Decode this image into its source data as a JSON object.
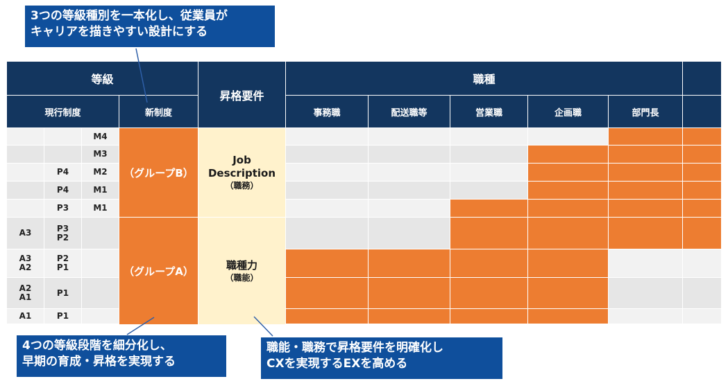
{
  "callouts": {
    "top": [
      "3つの等級種別を一本化し、従業員が",
      "キャリアを描きやすい設計にする"
    ],
    "bottom_left": [
      "4つの等級段階を細分化し、",
      "早期の育成・昇格を実現する"
    ],
    "bottom_right": [
      "職能・職務で昇格要件を明確化し",
      "CXを実現するEXを高める"
    ]
  },
  "header": {
    "grade": "等級",
    "current": "現行制度",
    "new": "新制度",
    "requirements": "昇格要件",
    "job_types": "職種",
    "jobs": [
      "事務職",
      "配送職等",
      "営業職",
      "企画職",
      "部門長"
    ]
  },
  "rows": [
    {
      "a": [],
      "p": [],
      "m": [
        "M4"
      ]
    },
    {
      "a": [],
      "p": [],
      "m": [
        "M3"
      ]
    },
    {
      "a": [],
      "p": [
        "P4"
      ],
      "m": [
        "M2"
      ]
    },
    {
      "a": [],
      "p": [
        "P4"
      ],
      "m": [
        "M1"
      ]
    },
    {
      "a": [],
      "p": [
        "P3"
      ],
      "m": [
        "M1"
      ]
    },
    {
      "a": [
        "A3"
      ],
      "p": [
        "P3",
        "P2"
      ],
      "m": []
    },
    {
      "a": [
        "A3",
        "A2"
      ],
      "p": [
        "P2",
        "P1"
      ],
      "m": []
    },
    {
      "a": [
        "A2",
        "A1"
      ],
      "p": [
        "P1"
      ],
      "m": []
    },
    {
      "a": [
        "A1"
      ],
      "p": [
        "P1"
      ],
      "m": []
    }
  ],
  "groups": {
    "b": "（グループB）",
    "a": "（グループA）"
  },
  "requirements": {
    "b": [
      "Job",
      "Description",
      "（職務）"
    ],
    "a": [
      "職種力",
      "（職能）"
    ]
  },
  "colors": {
    "header": "#13365f",
    "orange": "#ed7d31",
    "cream": "#fff2cc",
    "callout": "#0f4f9c",
    "gray_light": "#f2f2f2",
    "gray_dark": "#e6e6e6"
  },
  "coverage_note": "orange job cells per row (columns: 事務職, 配送職等, 営業職, 企画職, 部門長, extra)",
  "coverage": [
    [
      0,
      0,
      0,
      0,
      1,
      1
    ],
    [
      0,
      0,
      0,
      1,
      1,
      1
    ],
    [
      0,
      0,
      0,
      1,
      1,
      1
    ],
    [
      0,
      0,
      0,
      1,
      1,
      1
    ],
    [
      0,
      0,
      1,
      1,
      1,
      1
    ],
    [
      0,
      0,
      1,
      1,
      1,
      1
    ],
    [
      1,
      1,
      1,
      1,
      0,
      0
    ],
    [
      1,
      1,
      1,
      1,
      0,
      0
    ],
    [
      1,
      1,
      1,
      1,
      0,
      0
    ]
  ]
}
